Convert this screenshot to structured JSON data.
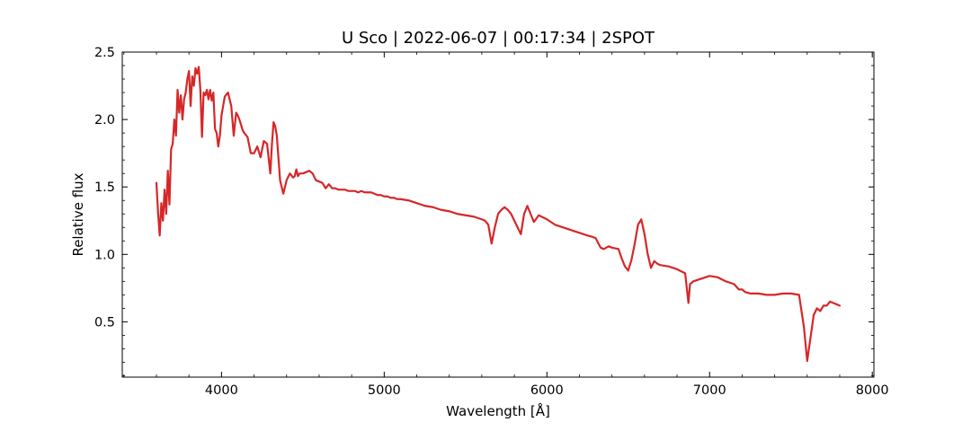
{
  "chart_data": {
    "type": "line",
    "title": "U Sco | 2022-06-07 | 00:17:34 | 2SPOT",
    "xlabel": "Wavelength [Å]",
    "ylabel": "Relative flux",
    "xlim": [
      3390,
      8010
    ],
    "ylim": [
      0.09,
      2.5
    ],
    "xticks": [
      4000,
      5000,
      6000,
      7000,
      8000
    ],
    "yticks": [
      0.5,
      1.0,
      1.5,
      2.0,
      2.5
    ],
    "xticklabels": [
      "4000",
      "5000",
      "6000",
      "7000",
      "8000"
    ],
    "yticklabels": [
      "0.5",
      "1.0",
      "1.5",
      "2.0",
      "2.5"
    ],
    "grid": false,
    "line_color": "#d62728",
    "series": [
      {
        "x": [
          3600,
          3610,
          3620,
          3630,
          3640,
          3650,
          3660,
          3670,
          3680,
          3690,
          3700,
          3710,
          3720,
          3730,
          3740,
          3750,
          3760,
          3770,
          3780,
          3790,
          3800,
          3810,
          3820,
          3830,
          3840,
          3850,
          3860,
          3870,
          3880,
          3890,
          3900,
          3910,
          3920,
          3930,
          3940,
          3950,
          3960,
          3970,
          3980,
          3990,
          4000,
          4020,
          4040,
          4060,
          4075,
          4090,
          4100,
          4110,
          4120,
          4130,
          4140,
          4160,
          4180,
          4200,
          4220,
          4240,
          4260,
          4280,
          4300,
          4310,
          4320,
          4330,
          4340,
          4360,
          4380,
          4400,
          4420,
          4440,
          4450,
          4460,
          4470,
          4480,
          4500,
          4520,
          4540,
          4560,
          4580,
          4600,
          4620,
          4640,
          4660,
          4680,
          4700,
          4720,
          4740,
          4760,
          4780,
          4800,
          4820,
          4840,
          4860,
          4880,
          4900,
          4920,
          4940,
          4960,
          4980,
          5000,
          5020,
          5040,
          5060,
          5080,
          5100,
          5150,
          5200,
          5250,
          5300,
          5350,
          5400,
          5450,
          5500,
          5550,
          5600,
          5620,
          5640,
          5660,
          5680,
          5700,
          5720,
          5740,
          5760,
          5780,
          5800,
          5820,
          5840,
          5860,
          5880,
          5900,
          5920,
          5950,
          6000,
          6050,
          6100,
          6150,
          6200,
          6250,
          6280,
          6300,
          6330,
          6350,
          6380,
          6400,
          6440,
          6460,
          6480,
          6500,
          6520,
          6540,
          6560,
          6580,
          6600,
          6620,
          6640,
          6660,
          6680,
          6700,
          6750,
          6800,
          6850,
          6870,
          6880,
          6900,
          6950,
          7000,
          7050,
          7100,
          7150,
          7180,
          7200,
          7220,
          7250,
          7300,
          7350,
          7400,
          7450,
          7500,
          7550,
          7580,
          7600,
          7620,
          7640,
          7660,
          7680,
          7700,
          7720,
          7740,
          7760,
          7780,
          7800
        ],
        "y": [
          1.53,
          1.31,
          1.14,
          1.38,
          1.25,
          1.48,
          1.3,
          1.62,
          1.37,
          1.78,
          1.82,
          2.0,
          1.88,
          2.22,
          2.05,
          2.18,
          2.0,
          2.15,
          2.2,
          2.3,
          2.36,
          2.1,
          2.32,
          2.25,
          2.38,
          2.34,
          2.39,
          2.22,
          1.87,
          2.2,
          2.18,
          2.22,
          2.15,
          2.22,
          2.14,
          2.2,
          1.93,
          1.9,
          1.8,
          1.88,
          2.03,
          2.17,
          2.2,
          2.1,
          1.88,
          2.05,
          2.03,
          2.0,
          1.96,
          1.92,
          1.9,
          1.87,
          1.75,
          1.75,
          1.8,
          1.72,
          1.84,
          1.82,
          1.6,
          1.82,
          1.98,
          1.95,
          1.88,
          1.55,
          1.45,
          1.55,
          1.6,
          1.57,
          1.58,
          1.63,
          1.58,
          1.6,
          1.6,
          1.61,
          1.62,
          1.6,
          1.55,
          1.54,
          1.53,
          1.49,
          1.52,
          1.49,
          1.49,
          1.48,
          1.48,
          1.48,
          1.47,
          1.47,
          1.47,
          1.46,
          1.47,
          1.46,
          1.46,
          1.46,
          1.45,
          1.44,
          1.44,
          1.43,
          1.43,
          1.42,
          1.42,
          1.41,
          1.41,
          1.4,
          1.38,
          1.36,
          1.35,
          1.33,
          1.32,
          1.3,
          1.29,
          1.28,
          1.26,
          1.25,
          1.22,
          1.08,
          1.2,
          1.3,
          1.33,
          1.35,
          1.33,
          1.3,
          1.25,
          1.2,
          1.15,
          1.3,
          1.36,
          1.3,
          1.24,
          1.29,
          1.26,
          1.22,
          1.2,
          1.18,
          1.16,
          1.14,
          1.13,
          1.12,
          1.05,
          1.04,
          1.06,
          1.05,
          1.04,
          0.97,
          0.91,
          0.88,
          0.96,
          1.08,
          1.22,
          1.26,
          1.15,
          1.0,
          0.9,
          0.95,
          0.93,
          0.92,
          0.91,
          0.89,
          0.86,
          0.64,
          0.78,
          0.8,
          0.82,
          0.84,
          0.83,
          0.8,
          0.78,
          0.74,
          0.74,
          0.72,
          0.71,
          0.71,
          0.7,
          0.7,
          0.71,
          0.71,
          0.7,
          0.46,
          0.21,
          0.38,
          0.55,
          0.6,
          0.58,
          0.62,
          0.62,
          0.65,
          0.64,
          0.63,
          0.62
        ]
      }
    ]
  }
}
